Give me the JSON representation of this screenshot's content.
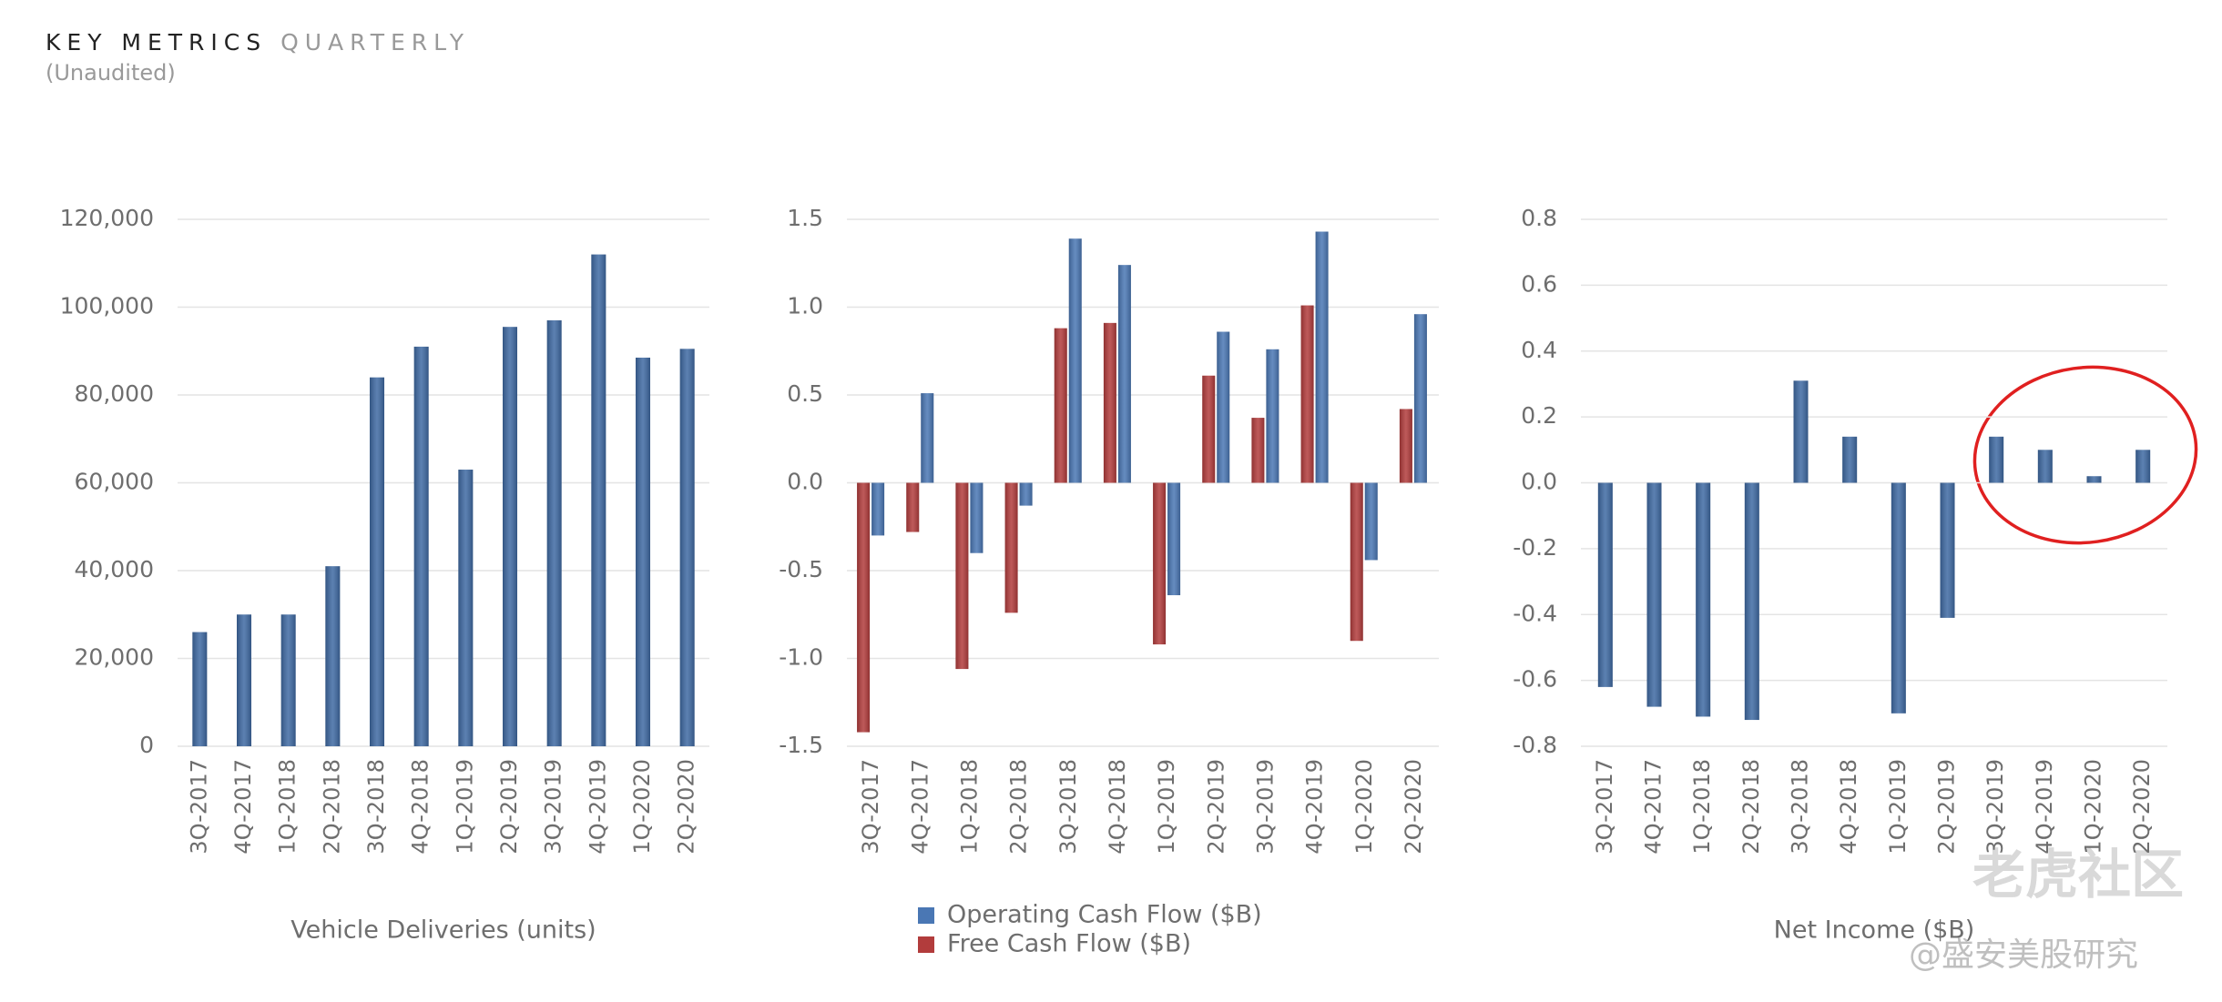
{
  "header": {
    "title": "KEY METRICS",
    "title_suffix": "QUARTERLY",
    "subtitle": "(Unaudited)"
  },
  "chart_data": [
    {
      "type": "bar",
      "xlabel": "Vehicle Deliveries (units)",
      "categories": [
        "3Q-2017",
        "4Q-2017",
        "1Q-2018",
        "2Q-2018",
        "3Q-2018",
        "4Q-2018",
        "1Q-2019",
        "2Q-2019",
        "3Q-2019",
        "4Q-2019",
        "1Q-2020",
        "2Q-2020"
      ],
      "values": [
        26000,
        30000,
        30000,
        41000,
        84000,
        91000,
        63000,
        95500,
        97000,
        112000,
        88500,
        90500
      ],
      "color": "#3f6aa3",
      "ylim": [
        0,
        120000
      ],
      "yticks": [
        0,
        {
          "value": 20000,
          "label": "20,000"
        },
        {
          "value": 40000,
          "label": "40,000"
        },
        {
          "value": 60000,
          "label": "60,000"
        },
        {
          "value": 80000,
          "label": "80,000"
        },
        {
          "value": 100000,
          "label": "100,000"
        },
        {
          "value": 120000,
          "label": "120,000"
        }
      ],
      "grid": true
    },
    {
      "type": "grouped-bar",
      "categories": [
        "3Q-2017",
        "4Q-2017",
        "1Q-2018",
        "2Q-2018",
        "3Q-2018",
        "4Q-2018",
        "1Q-2019",
        "2Q-2019",
        "3Q-2019",
        "4Q-2019",
        "1Q-2020",
        "2Q-2020"
      ],
      "series": [
        {
          "name": "Free Cash Flow ($B)",
          "color": "#b23c3c",
          "values": [
            -1.42,
            -0.28,
            -1.06,
            -0.74,
            0.88,
            0.91,
            -0.92,
            0.61,
            0.37,
            1.01,
            -0.9,
            0.42
          ]
        },
        {
          "name": "Operating Cash Flow ($B)",
          "color": "#4a77b4",
          "values": [
            -0.3,
            0.51,
            -0.4,
            -0.13,
            1.39,
            1.24,
            -0.64,
            0.86,
            0.76,
            1.43,
            -0.44,
            0.96
          ]
        }
      ],
      "ylim": [
        -1.5,
        1.5
      ],
      "yticks": [
        -1.5,
        {
          "value": -1.0,
          "label": "-1.0"
        },
        -0.5,
        {
          "value": 0,
          "label": "0.0"
        },
        0.5,
        {
          "value": 1.0,
          "label": "1.0"
        },
        1.5
      ],
      "grid": true
    },
    {
      "type": "bar",
      "xlabel": "Net Income ($B)",
      "categories": [
        "3Q-2017",
        "4Q-2017",
        "1Q-2018",
        "2Q-2018",
        "3Q-2018",
        "4Q-2018",
        "1Q-2019",
        "2Q-2019",
        "3Q-2019",
        "4Q-2019",
        "1Q-2020",
        "2Q-2020"
      ],
      "values": [
        -0.62,
        -0.68,
        -0.71,
        -0.72,
        0.31,
        0.14,
        -0.7,
        -0.41,
        0.14,
        0.1,
        0.02,
        0.1
      ],
      "color": "#3f6aa3",
      "ylim": [
        -0.8,
        0.8
      ],
      "yticks": [
        -0.8,
        -0.6,
        -0.4,
        -0.2,
        {
          "value": 0,
          "label": "0.0"
        },
        0.2,
        0.4,
        0.6,
        0.8
      ],
      "grid": true
    }
  ],
  "watermark": {
    "brand": "老虎社区",
    "author": "@盛安美股研究"
  }
}
